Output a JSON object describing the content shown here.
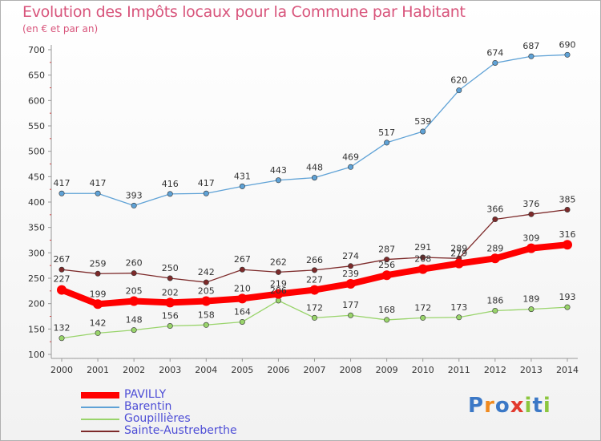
{
  "title": "Evolution des Impôts locaux pour la Commune par Habitant",
  "subtitle": "(en € et par an)",
  "logo": {
    "letters": [
      "P",
      "r",
      "o",
      "x",
      "i",
      "t",
      "i"
    ],
    "colors": [
      "#3b78c6",
      "#f08a1e",
      "#3b78c6",
      "#e23a2e",
      "#8cc63e",
      "#3b78c6",
      "#8cc63e"
    ]
  },
  "chart_data": {
    "type": "line",
    "title": "Evolution des Impôts locaux pour la Commune par Habitant",
    "ylabel": "(en € et par an)",
    "xlabel": "",
    "x": [
      2000,
      2001,
      2002,
      2003,
      2004,
      2005,
      2006,
      2007,
      2008,
      2009,
      2010,
      2011,
      2012,
      2013,
      2014
    ],
    "ylim": [
      100,
      700
    ],
    "yticks": [
      100,
      150,
      200,
      250,
      300,
      350,
      400,
      450,
      500,
      550,
      600,
      650,
      700
    ],
    "grid": false,
    "legend_position": "bottom-left",
    "series": [
      {
        "name": "PAVILLY",
        "color": "#ff0000",
        "values": [
          227,
          199,
          205,
          202,
          205,
          210,
          219,
          227,
          239,
          256,
          268,
          279,
          289,
          309,
          316
        ]
      },
      {
        "name": "Barentin",
        "color": "#5fa2d6",
        "values": [
          417,
          417,
          393,
          416,
          417,
          431,
          443,
          448,
          469,
          517,
          539,
          620,
          674,
          687,
          690
        ]
      },
      {
        "name": "Goupillières",
        "color": "#99d46b",
        "values": [
          132,
          142,
          148,
          156,
          158,
          164,
          206,
          172,
          177,
          168,
          172,
          173,
          186,
          189,
          193
        ]
      },
      {
        "name": "Sainte-Austreberthe",
        "color": "#7d2a2a",
        "values": [
          267,
          259,
          260,
          250,
          242,
          267,
          262,
          266,
          274,
          287,
          291,
          289,
          366,
          376,
          385
        ]
      }
    ]
  }
}
